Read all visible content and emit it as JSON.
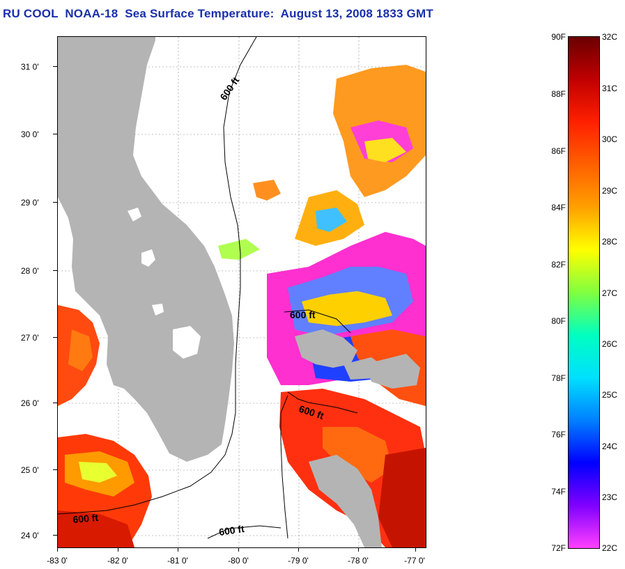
{
  "title": "RU COOL  NOAA-18  Sea Surface Temperature:  August 13, 2008 1833 GMT",
  "map": {
    "lat_labels": [
      "31 0'",
      "30 0'",
      "29 0'",
      "28 0'",
      "27 0'",
      "26 0'",
      "25 0'",
      "24 0'"
    ],
    "lon_labels": [
      "-83 0'",
      "-82 0'",
      "-81 0'",
      "-80 0'",
      "-79 0'",
      "-78 0'",
      "-77 0'"
    ],
    "contour_labels": [
      "600 ft",
      "600 ft",
      "600 ft",
      "600 ft",
      "600 ft"
    ],
    "land_color": "#b4b4b4"
  },
  "colorbar": {
    "fahrenheit": [
      "90F",
      "88F",
      "86F",
      "84F",
      "82F",
      "80F",
      "78F",
      "76F",
      "74F",
      "72F"
    ],
    "celsius": [
      "32C",
      "31C",
      "30C",
      "29C",
      "28C",
      "27C",
      "26C",
      "25C",
      "24C",
      "23C",
      "22C"
    ],
    "gradient_colors": [
      "#6a0000",
      "#c00000",
      "#ff2000",
      "#ff6000",
      "#ffa000",
      "#ffff00",
      "#80ff40",
      "#00ffc0",
      "#00e0ff",
      "#0080ff",
      "#0000ff",
      "#8000ff",
      "#ff40ff"
    ]
  }
}
